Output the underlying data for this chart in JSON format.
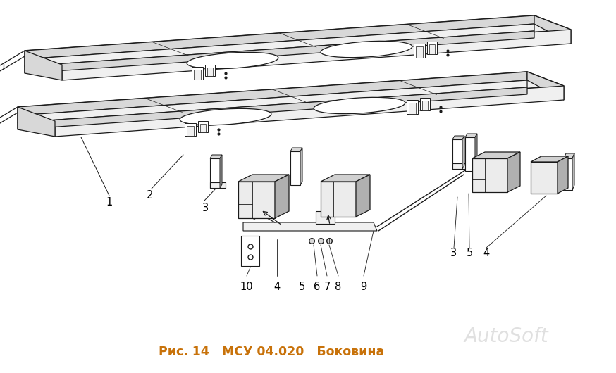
{
  "title": "Рис. 14   МСУ 04.020   Боковина",
  "title_color": "#c8720a",
  "title_fontsize": 12.5,
  "watermark": "AutoSoft",
  "watermark_color": "#cccccc",
  "bg_color": "#ffffff",
  "fig_width": 8.74,
  "fig_height": 5.3,
  "dpi": 100,
  "line_color": "#1a1a1a",
  "fill_light": "#f0f0f0",
  "fill_mid": "#d8d8d8",
  "fill_dark": "#b8b8b8"
}
